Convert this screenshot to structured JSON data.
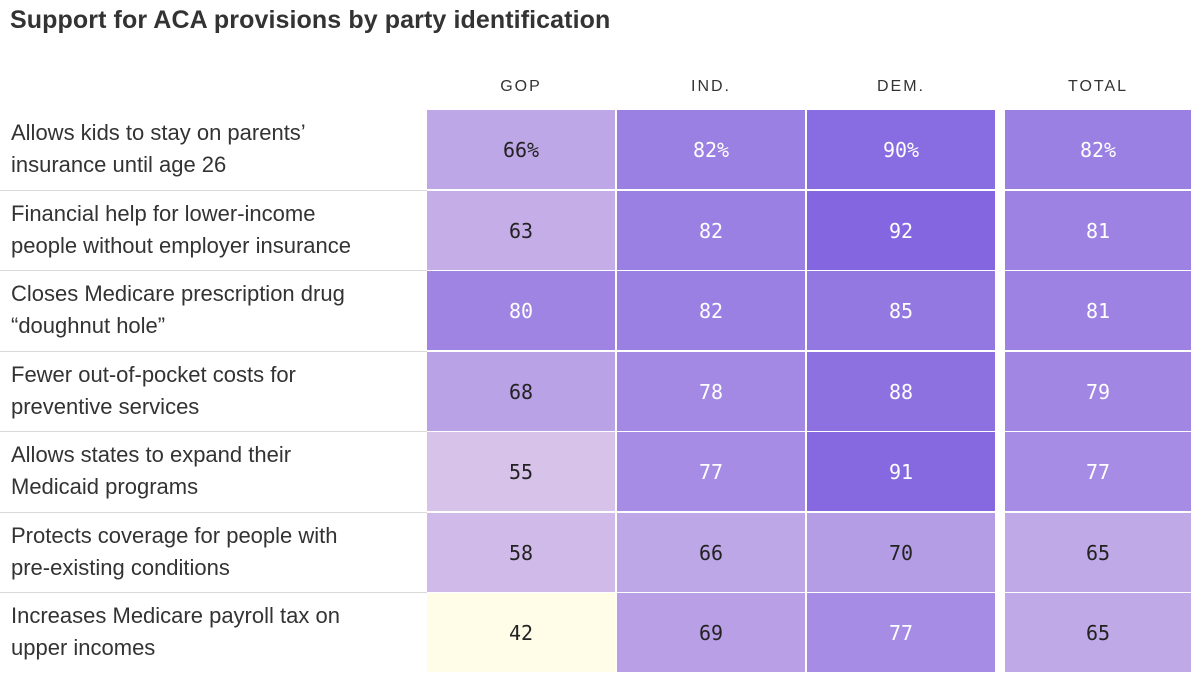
{
  "title": "Support for ACA provisions by party identification",
  "chart_data": {
    "type": "heatmap",
    "title": "Support for ACA provisions by party identification",
    "columns": [
      "GOP",
      "IND.",
      "DEM.",
      "TOTAL"
    ],
    "rows": [
      "Allows kids to stay on parents' insurance until age 26",
      "Financial help for lower-income people without employer insurance",
      "Closes Medicare prescription drug “doughnut hole”",
      "Fewer out-of-pocket costs for preventive services",
      "Allows states to expand their Medicaid programs",
      "Protects coverage for people with pre-existing conditions",
      "Increases Medicare payroll tax on upper incomes"
    ],
    "row_lines": [
      [
        "Allows kids to stay on parents’",
        "insurance until age 26"
      ],
      [
        "Financial help for lower-income",
        "people without employer insurance"
      ],
      [
        "Closes Medicare prescription drug",
        "“doughnut hole”"
      ],
      [
        "Fewer out-of-pocket costs for",
        "preventive services"
      ],
      [
        "Allows states to expand their",
        "Medicaid programs"
      ],
      [
        "Protects coverage for people with",
        "pre-existing conditions"
      ],
      [
        "Increases Medicare payroll tax on",
        "upper incomes"
      ]
    ],
    "values": [
      [
        66,
        82,
        90,
        82
      ],
      [
        63,
        82,
        92,
        81
      ],
      [
        80,
        82,
        85,
        81
      ],
      [
        68,
        78,
        88,
        79
      ],
      [
        55,
        77,
        91,
        77
      ],
      [
        58,
        66,
        70,
        65
      ],
      [
        42,
        69,
        77,
        65
      ]
    ],
    "value_labels": [
      [
        "66%",
        "82%",
        "90%",
        "82%"
      ],
      [
        "63",
        "82",
        "92",
        "81"
      ],
      [
        "80",
        "82",
        "85",
        "81"
      ],
      [
        "68",
        "78",
        "88",
        "79"
      ],
      [
        "55",
        "77",
        "91",
        "77"
      ],
      [
        "58",
        "66",
        "70",
        "65"
      ],
      [
        "42",
        "69",
        "77",
        "65"
      ]
    ],
    "unit": "%",
    "color_scale": {
      "low_value": 42,
      "high_value": 92,
      "low_color": "#fffde8",
      "mid_color": "#d8c3ea",
      "high_color": "#8467e0"
    },
    "text_colors": {
      "dark": "#222222",
      "light": "#ffffff"
    }
  }
}
